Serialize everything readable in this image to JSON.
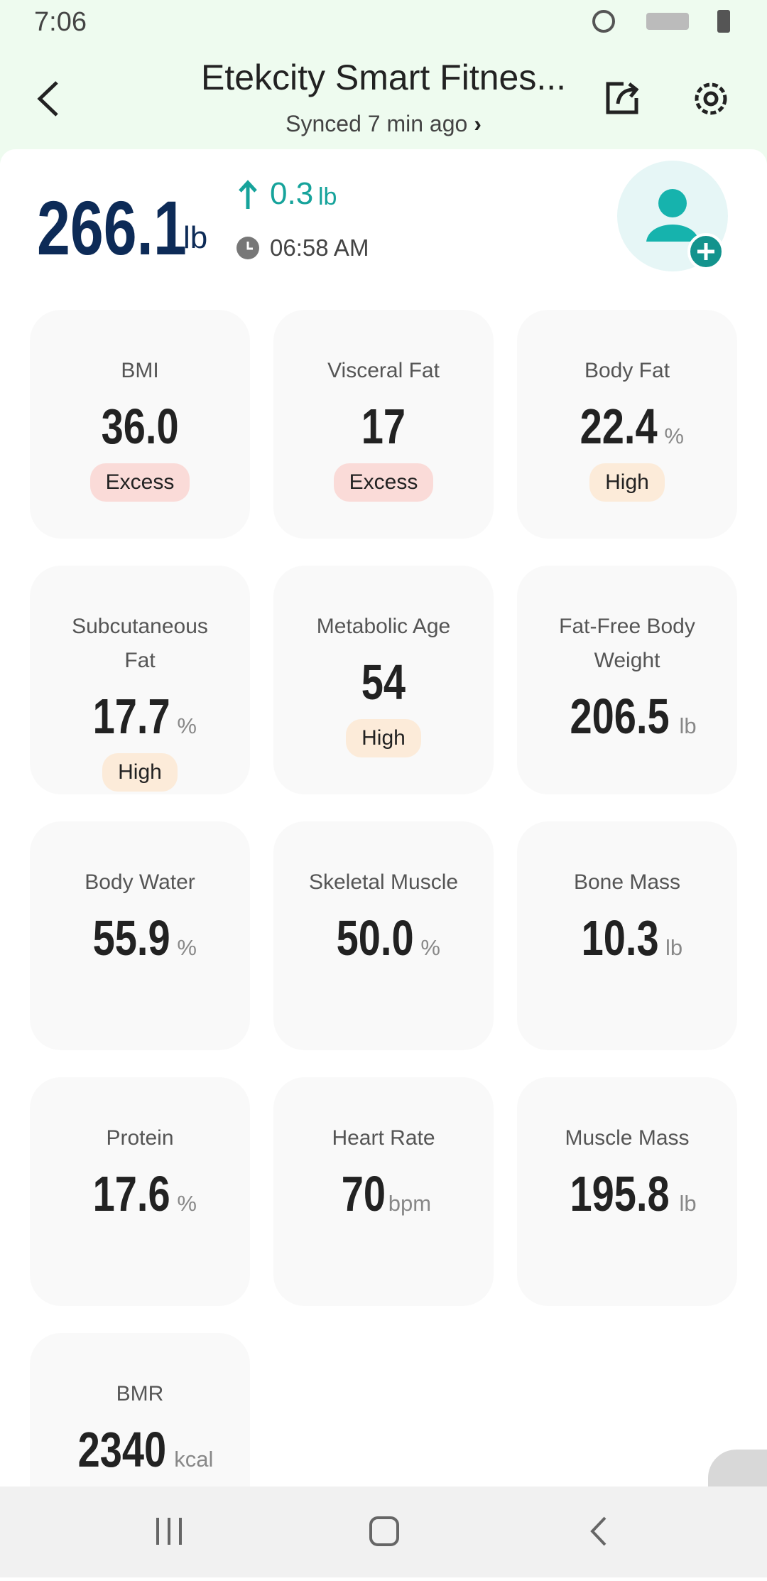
{
  "status_bar": {
    "time": "7:06"
  },
  "header": {
    "title": "Etekcity Smart Fitnes...",
    "subtitle": "Synced 7 min ago"
  },
  "summary": {
    "weight": "266.1",
    "weight_unit": "lb",
    "change": "0.3",
    "change_unit": "lb",
    "time": "06:58 AM"
  },
  "metrics": [
    {
      "label": "BMI",
      "value": "36.0",
      "status": "Excess"
    },
    {
      "label": "Visceral Fat",
      "value": "17",
      "status": "Excess"
    },
    {
      "label": "Body Fat",
      "value": "22.4",
      "unit": "%",
      "status": "High"
    },
    {
      "label": "Subcutaneous Fat",
      "value": "17.7",
      "unit": "%",
      "status": "High"
    },
    {
      "label": "Metabolic Age",
      "value": "54",
      "status": "High"
    },
    {
      "label": "Fat-Free Body Weight",
      "value": "206.5",
      "unit": "lb"
    },
    {
      "label": "Body Water",
      "value": "55.9",
      "unit": "%"
    },
    {
      "label": "Skeletal Muscle",
      "value": "50.0",
      "unit": "%"
    },
    {
      "label": "Bone Mass",
      "value": "10.3",
      "unit": "lb"
    },
    {
      "label": "Protein",
      "value": "17.6",
      "unit": "%"
    },
    {
      "label": "Heart Rate",
      "value": "70",
      "unit": "bpm"
    },
    {
      "label": "Muscle Mass",
      "value": "195.8",
      "unit": "lb"
    },
    {
      "label": "BMR",
      "value": "2340",
      "unit": "kcal"
    }
  ]
}
